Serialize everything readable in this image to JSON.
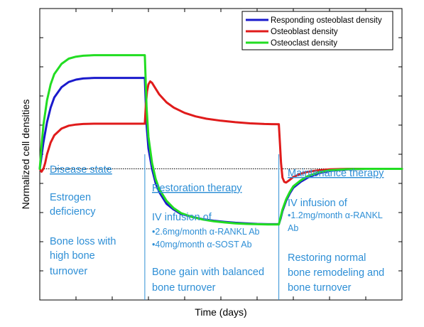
{
  "chart_data": {
    "type": "line",
    "title": "",
    "xlabel": "Time (days)",
    "ylabel": "Normalized cell densities",
    "xlim": [
      0,
      100
    ],
    "ylim": [
      0,
      100
    ],
    "baseline": 45,
    "phase_boundaries": [
      29,
      66
    ],
    "legend_position": "top-right",
    "colors": {
      "annotation": "#2e8fd6",
      "baseline": "#000000"
    },
    "series": [
      {
        "name": "Responding osteoblast density",
        "color": "#1a1acc",
        "x": [
          0,
          1,
          2,
          3,
          4,
          6,
          8,
          10,
          12,
          15,
          18,
          21,
          24,
          27,
          29,
          29.5,
          30,
          31,
          32,
          33,
          35,
          37,
          39,
          42,
          45,
          48,
          51,
          54,
          57,
          60,
          63,
          66,
          66.5,
          67,
          68,
          69,
          70,
          72,
          74,
          77,
          80,
          85,
          90,
          95,
          100
        ],
        "y": [
          45,
          54,
          61,
          66,
          69.5,
          73,
          74.8,
          75.6,
          76,
          76.2,
          76.2,
          76.2,
          76.2,
          76.2,
          76.2,
          60,
          52,
          45,
          40,
          37,
          33,
          31,
          29.5,
          28.5,
          27.7,
          27.2,
          26.8,
          26.5,
          26.3,
          26.1,
          26,
          26,
          28,
          30.5,
          34,
          36.5,
          38.5,
          40.5,
          42,
          43.5,
          44.3,
          44.8,
          45,
          45,
          45
        ]
      },
      {
        "name": "Osteoblast density",
        "color": "#e01b1b",
        "x": [
          0,
          0.5,
          1,
          1.5,
          2,
          3,
          4,
          6,
          8,
          10,
          12,
          15,
          18,
          21,
          24,
          27,
          29,
          29.3,
          29.6,
          30,
          30.5,
          31,
          32,
          33,
          35,
          37,
          40,
          43,
          46,
          50,
          54,
          58,
          62,
          66,
          66.3,
          66.6,
          67,
          67.5,
          68,
          69,
          70,
          72,
          74,
          77,
          80,
          85,
          90,
          95,
          100
        ],
        "y": [
          45,
          44,
          45,
          47,
          50,
          54,
          56.5,
          58.8,
          59.8,
          60.2,
          60.4,
          60.5,
          60.5,
          60.5,
          60.5,
          60.5,
          60.5,
          67,
          71.5,
          74,
          75,
          74.5,
          72.5,
          70.5,
          67.8,
          66,
          64.2,
          63,
          62.2,
          61.5,
          61,
          60.6,
          60.4,
          60.3,
          54,
          47,
          42,
          40.5,
          40.3,
          41.2,
          42.2,
          43.3,
          44,
          44.5,
          44.8,
          45,
          45,
          45,
          45
        ]
      },
      {
        "name": "Osteoclast density",
        "color": "#22dd22",
        "x": [
          0,
          0.5,
          1,
          2,
          3,
          4,
          6,
          8,
          10,
          12,
          15,
          18,
          21,
          24,
          27,
          29,
          29.5,
          30,
          31,
          32,
          33,
          35,
          37,
          39,
          42,
          45,
          48,
          51,
          54,
          57,
          60,
          63,
          66,
          66.5,
          67,
          68,
          69,
          70,
          72,
          74,
          77,
          80,
          85,
          90,
          95,
          100
        ],
        "y": [
          45,
          53,
          60,
          68.5,
          74,
          77.5,
          81,
          82.8,
          83.5,
          83.8,
          84,
          84,
          84,
          84,
          84,
          84,
          66,
          56,
          47,
          41.5,
          38,
          34,
          31.5,
          29.8,
          28.5,
          27.6,
          27,
          26.6,
          26.3,
          26.1,
          26,
          25.9,
          25.9,
          28.5,
          31,
          34.5,
          37,
          39,
          41,
          42.5,
          43.8,
          44.5,
          44.9,
          45,
          45,
          45
        ]
      }
    ]
  },
  "annotations": {
    "disease": {
      "heading": "Disease state",
      "line1": "Estrogen",
      "line2": "deficiency",
      "line3": "Bone loss with",
      "line4": "high bone",
      "line5": "turnover"
    },
    "restoration": {
      "heading": "Restoration therapy",
      "line1": "IV infusion of",
      "bullet1": "•2.6mg/month α-RANKL Ab",
      "bullet2": "•40mg/month α-SOST Ab",
      "line2": "Bone gain with balanced",
      "line3": "bone turnover"
    },
    "maintenance": {
      "heading": "Maintenance therapy",
      "line1": "IV infusion of",
      "bullet1": "•1.2mg/month α-RANKL",
      "bullet1b": "Ab",
      "line2": "Restoring normal",
      "line3": "bone remodeling and",
      "line4": "bone turnover"
    }
  }
}
